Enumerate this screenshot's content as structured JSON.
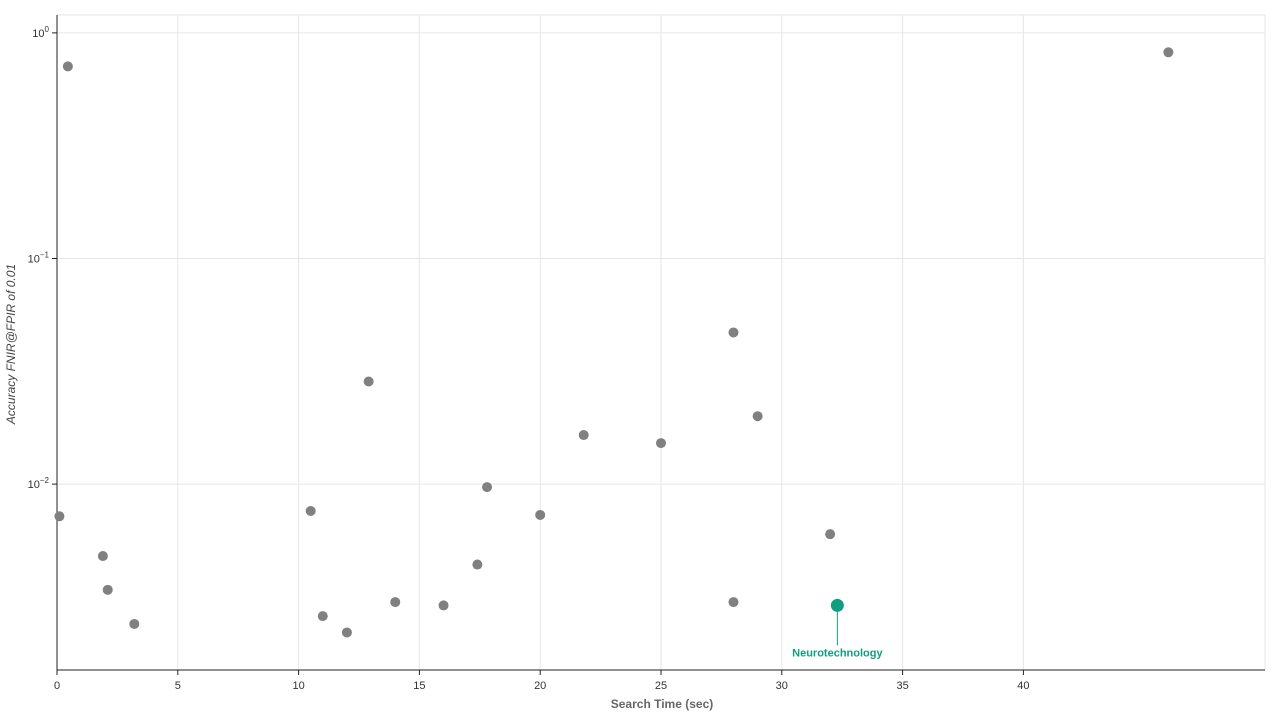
{
  "chart_data": {
    "type": "scatter",
    "xlabel": "Search Time (sec)",
    "ylabel": "Accuracy FNIR@FPIR of 0.01",
    "xlim": [
      0,
      50
    ],
    "ylim": [
      0.0015,
      1.2
    ],
    "y_scale": "log",
    "x_ticks": [
      0,
      5,
      10,
      15,
      20,
      25,
      30,
      35,
      40
    ],
    "y_ticks": [
      {
        "value": 1,
        "base": "10",
        "exp": "0"
      },
      {
        "value": 0.1,
        "base": "10",
        "exp": "−1"
      },
      {
        "value": 0.01,
        "base": "10",
        "exp": "−2"
      }
    ],
    "grid": true,
    "colors": {
      "point": "#808080",
      "highlight": "#0f9e7f"
    },
    "series": [
      {
        "points": [
          {
            "x": 0.1,
            "y": 0.0072
          },
          {
            "x": 0.45,
            "y": 0.71
          },
          {
            "x": 1.9,
            "y": 0.0048
          },
          {
            "x": 2.1,
            "y": 0.0034
          },
          {
            "x": 3.2,
            "y": 0.0024
          },
          {
            "x": 10.5,
            "y": 0.0076
          },
          {
            "x": 11.0,
            "y": 0.0026
          },
          {
            "x": 12.0,
            "y": 0.0022
          },
          {
            "x": 12.9,
            "y": 0.0285
          },
          {
            "x": 14.0,
            "y": 0.003
          },
          {
            "x": 16.0,
            "y": 0.0029
          },
          {
            "x": 17.4,
            "y": 0.0044
          },
          {
            "x": 17.8,
            "y": 0.0097
          },
          {
            "x": 20.0,
            "y": 0.0073
          },
          {
            "x": 21.8,
            "y": 0.0165
          },
          {
            "x": 25.0,
            "y": 0.0152
          },
          {
            "x": 28.0,
            "y": 0.047
          },
          {
            "x": 28.0,
            "y": 0.003
          },
          {
            "x": 29.0,
            "y": 0.02
          },
          {
            "x": 32.0,
            "y": 0.006
          },
          {
            "x": 46.0,
            "y": 0.82
          }
        ]
      }
    ],
    "highlight": {
      "label": "Neurotechnology",
      "x": 32.3,
      "y": 0.0029
    }
  }
}
